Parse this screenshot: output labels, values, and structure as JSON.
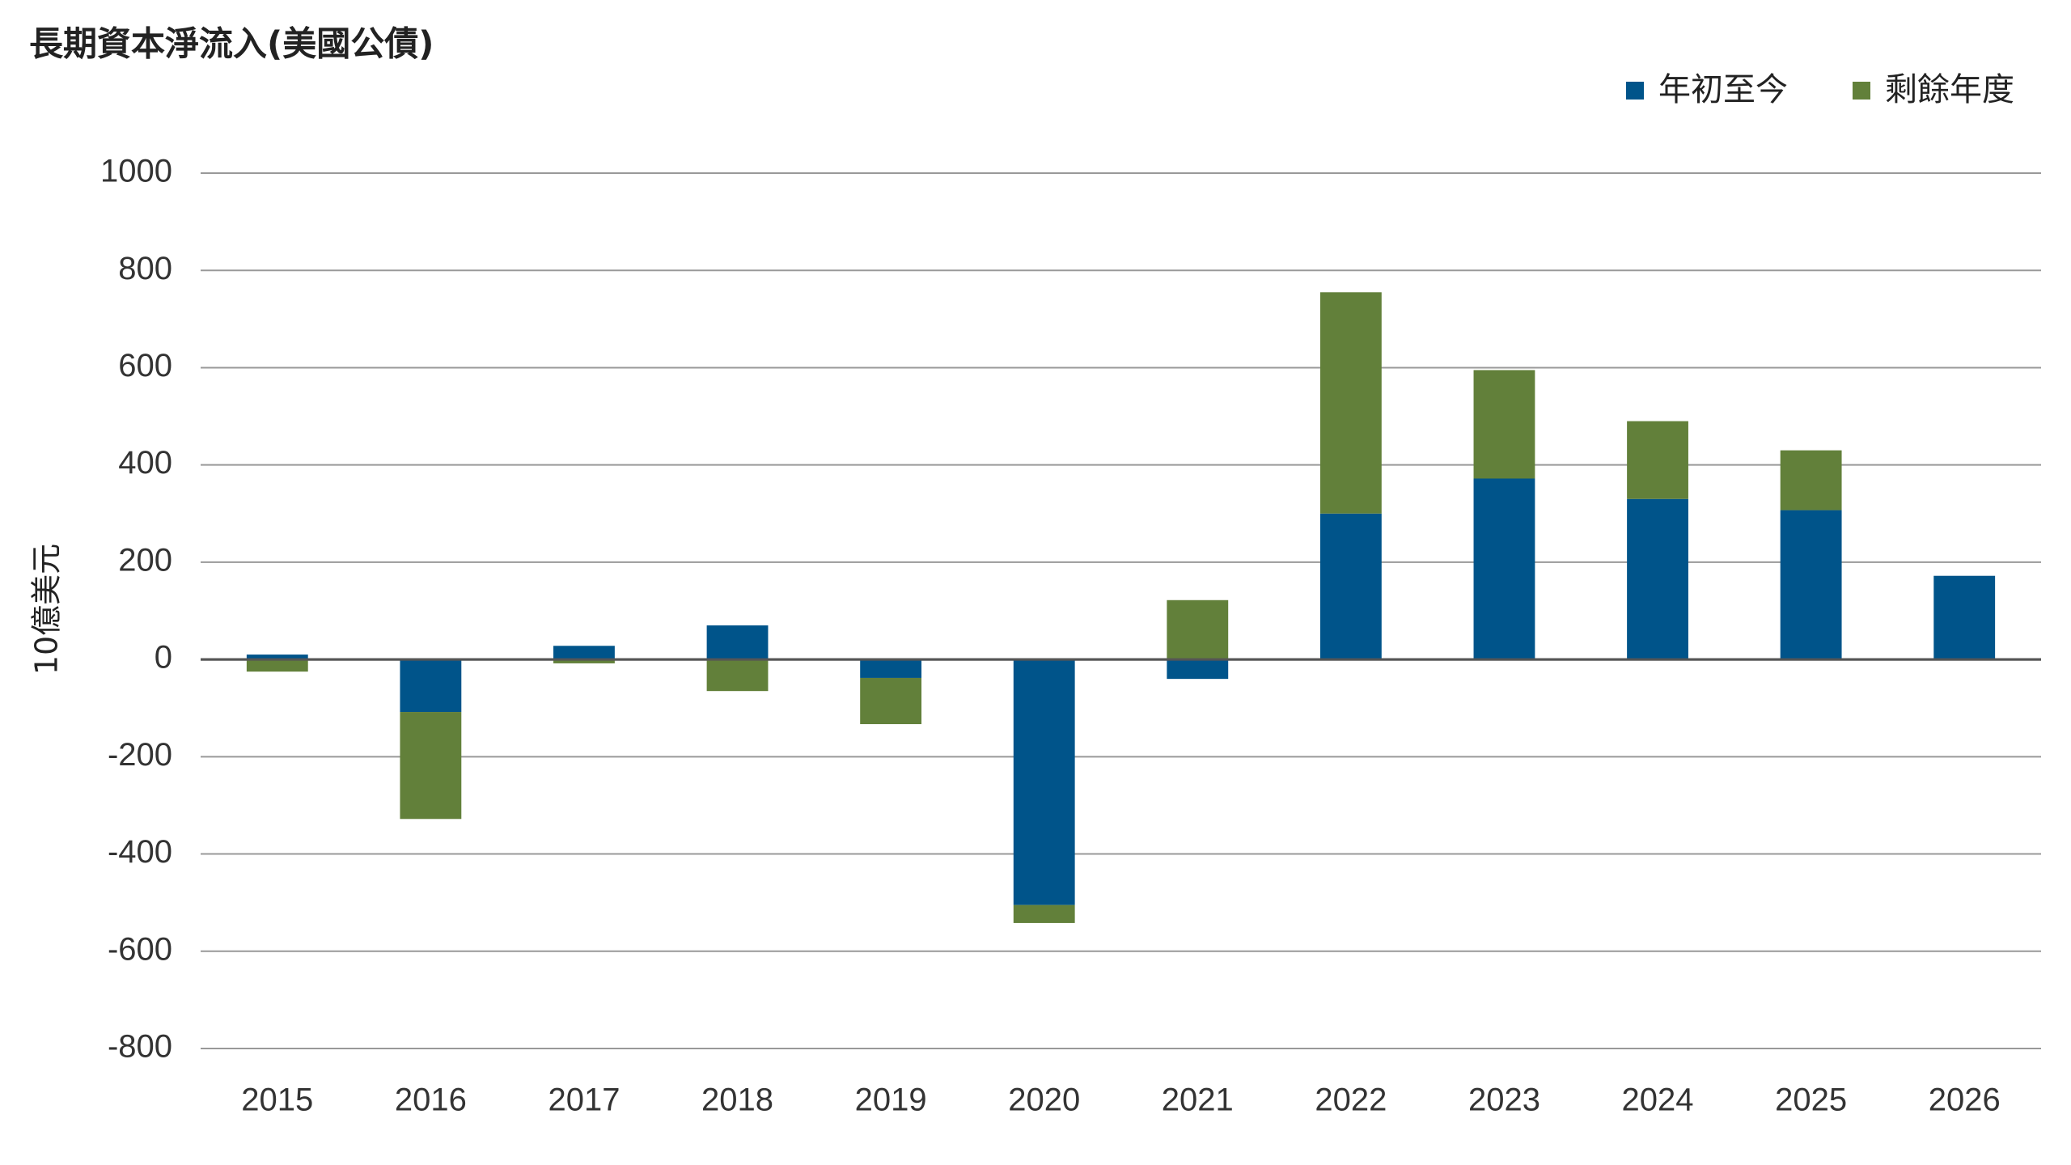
{
  "chart_data": {
    "type": "stacked_bar",
    "title": "長期資本淨流入(美國公債)",
    "y_label": "10億美元",
    "categories": [
      "2015",
      "2016",
      "2017",
      "2018",
      "2019",
      "2020",
      "2021",
      "2022",
      "2023",
      "2024",
      "2025",
      "2026"
    ],
    "series": [
      {
        "name": "年初至今",
        "color": "#00548a",
        "values": [
          10,
          -108,
          28,
          70,
          -38,
          -505,
          -40,
          300,
          372,
          330,
          307,
          172
        ]
      },
      {
        "name": "剩餘年度",
        "color": "#62803a",
        "values": [
          -25,
          -220,
          -8,
          -65,
          -95,
          -37,
          122,
          455,
          223,
          160,
          123,
          null
        ]
      }
    ],
    "ylim": [
      -800,
      1000
    ],
    "yticks": [
      -800,
      -600,
      -400,
      -200,
      0,
      200,
      400,
      600,
      800,
      1000
    ],
    "grid": true,
    "legend": "top-right"
  }
}
